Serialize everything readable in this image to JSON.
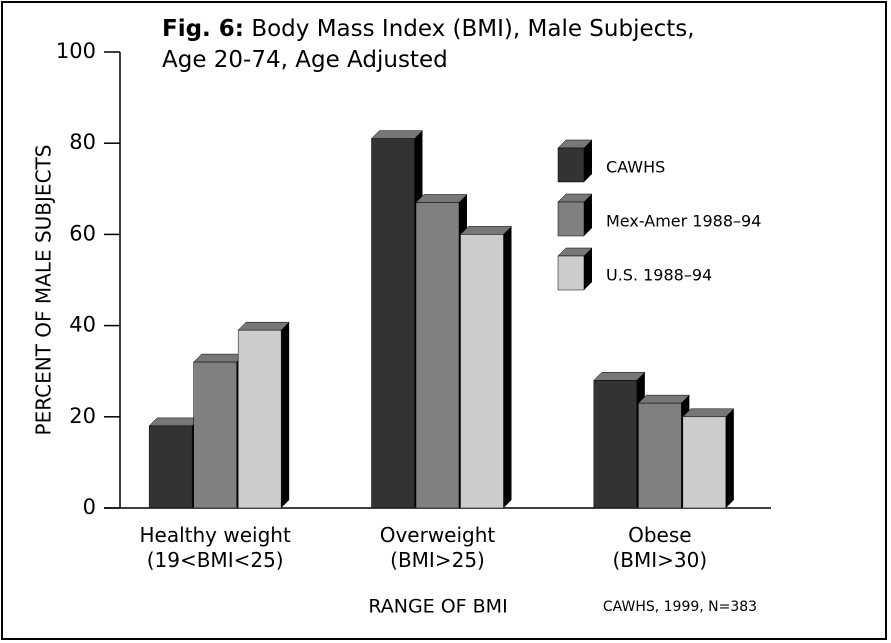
{
  "chart_data": {
    "type": "bar",
    "figure_label": "Fig. 6:",
    "title": "Body Mass Index (BMI), Male Subjects,\nAge 20-74, Age Adjusted",
    "y_label": "PERCENT OF MALE SUBJECTS",
    "x_label": "RANGE OF BMI",
    "source": "CAWHS, 1999, N=383",
    "categories": [
      "Healthy weight\n(19<BMI<25)",
      "Overweight\n(BMI>25)",
      "Obese\n(BMI>30)"
    ],
    "series": [
      {
        "name": "CAWHS",
        "color": "#333333",
        "values": [
          18,
          81,
          28
        ]
      },
      {
        "name": "Mex-Amer 1988–94",
        "color": "#808080",
        "values": [
          32,
          67,
          23
        ]
      },
      {
        "name": "U.S. 1988–94",
        "color": "#cccccc",
        "values": [
          39,
          60,
          20
        ]
      }
    ],
    "ylim": [
      0,
      100
    ],
    "yticks": [
      0,
      20,
      40,
      60,
      80,
      100
    ],
    "legend": "upper right",
    "grid": false
  }
}
